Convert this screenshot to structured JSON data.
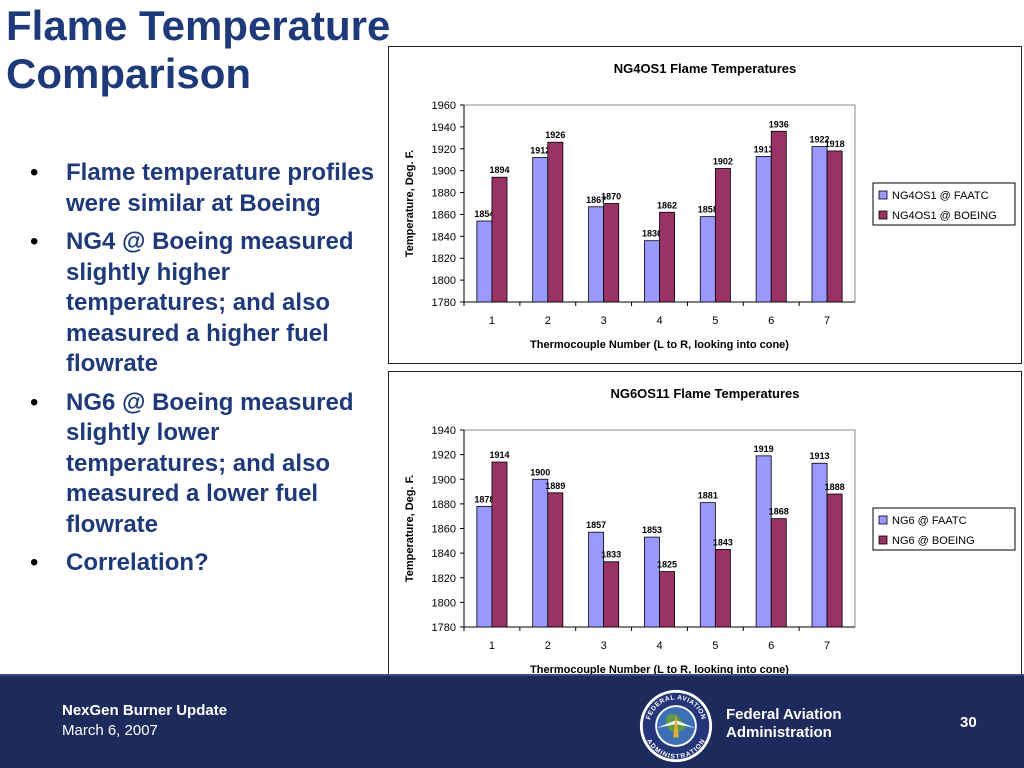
{
  "slide": {
    "title_line1": "Flame Temperature",
    "title_line2": "Comparison",
    "bullets": [
      {
        "glyph": "•",
        "text": "Flame temperature profiles were similar at Boeing"
      },
      {
        "glyph": "•",
        "text": "NG4 @ Boeing measured slightly higher temperatures; and also measured a higher fuel flowrate"
      },
      {
        "glyph": "•",
        "text": "NG6 @ Boeing measured slightly lower temperatures; and also measured a lower fuel flowrate"
      },
      {
        "glyph": "•",
        "text": "Correlation?"
      }
    ]
  },
  "footer": {
    "title": "NexGen Burner Update",
    "date": "March 6, 2007",
    "agency_line1": "Federal Aviation",
    "agency_line2": "Administration",
    "seal_text_top": "FEDERAL AVIATION",
    "seal_text_bottom": "ADMINISTRATION",
    "page_number": "30"
  },
  "colors": {
    "title": "#1f3a7a",
    "faatc": "#9999ff",
    "boeing": "#993366",
    "footer_bg": "#1d2a5c"
  },
  "chart_data": [
    {
      "type": "bar",
      "title": "NG4OS1 Flame Temperatures",
      "xlabel": "Thermocouple Number (L to R, looking into cone)",
      "ylabel": "Temperature, Deg. F.",
      "categories": [
        "1",
        "2",
        "3",
        "4",
        "5",
        "6",
        "7"
      ],
      "ylim": [
        1780,
        1960
      ],
      "yticks": [
        1780,
        1800,
        1820,
        1840,
        1860,
        1880,
        1900,
        1920,
        1940,
        1960
      ],
      "legend_position": "right",
      "series": [
        {
          "name": "NG4OS1 @ FAATC",
          "color": "#9999ff",
          "values": [
            1854,
            1912,
            1867,
            1836,
            1858,
            1913,
            1922
          ]
        },
        {
          "name": "NG4OS1 @ BOEING",
          "color": "#993366",
          "values": [
            1894,
            1926,
            1870,
            1862,
            1902,
            1936,
            1918
          ]
        }
      ]
    },
    {
      "type": "bar",
      "title": "NG6OS11 Flame Temperatures",
      "xlabel": "Thermocouple Number (L to R, looking into cone)",
      "ylabel": "Temperature, Deg. F.",
      "categories": [
        "1",
        "2",
        "3",
        "4",
        "5",
        "6",
        "7"
      ],
      "ylim": [
        1780,
        1940
      ],
      "yticks": [
        1780,
        1800,
        1820,
        1840,
        1860,
        1880,
        1900,
        1920,
        1940
      ],
      "legend_position": "right",
      "series": [
        {
          "name": "NG6 @ FAATC",
          "color": "#9999ff",
          "values": [
            1878,
            1900,
            1857,
            1853,
            1881,
            1919,
            1913
          ]
        },
        {
          "name": "NG6 @ BOEING",
          "color": "#993366",
          "values": [
            1914,
            1889,
            1833,
            1825,
            1843,
            1868,
            1888
          ]
        }
      ]
    }
  ]
}
